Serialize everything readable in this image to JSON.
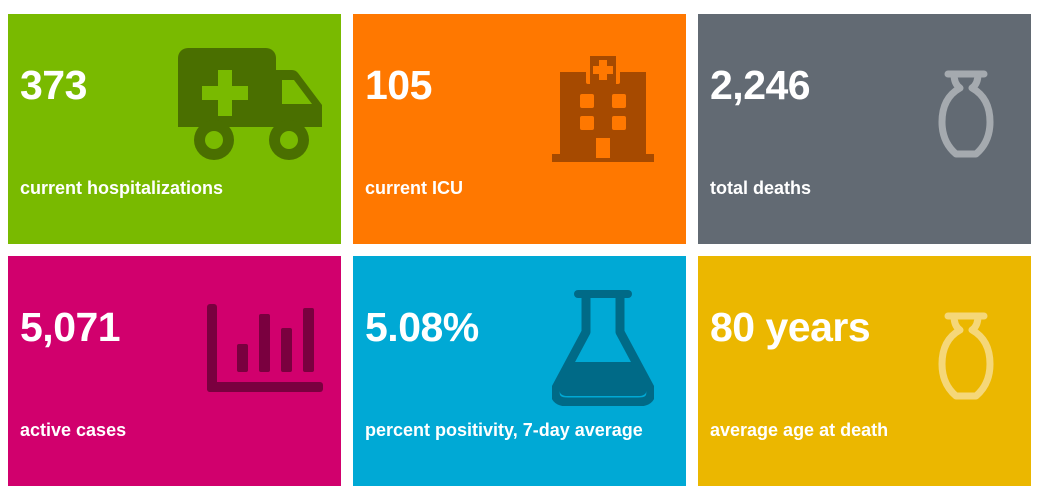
{
  "colors": {
    "green": "#79BA00",
    "orange": "#FF7800",
    "gray": "#626A73",
    "magenta": "#D1006D",
    "blue": "#00A9D5",
    "yellow": "#EBB700"
  },
  "tiles": [
    {
      "value": "373",
      "label": "current hospitalizations",
      "icon": "ambulance-icon"
    },
    {
      "value": "105",
      "label": "current ICU",
      "icon": "hospital-building-icon"
    },
    {
      "value": "2,246",
      "label": "total deaths",
      "icon": "urn-icon"
    },
    {
      "value": "5,071",
      "label": "active cases",
      "icon": "bar-chart-icon"
    },
    {
      "value": "5.08%",
      "label": "percent positivity, 7-day average",
      "icon": "flask-icon"
    },
    {
      "value": "80 years",
      "label": "average age at death",
      "icon": "urn-icon"
    }
  ]
}
